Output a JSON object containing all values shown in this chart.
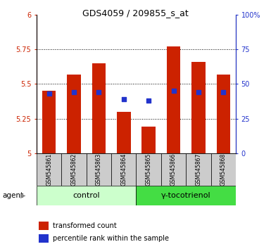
{
  "title": "GDS4059 / 209855_s_at",
  "samples": [
    "GSM545861",
    "GSM545862",
    "GSM545863",
    "GSM545864",
    "GSM545865",
    "GSM545866",
    "GSM545867",
    "GSM545868"
  ],
  "transformed_counts": [
    5.45,
    5.57,
    5.65,
    5.3,
    5.19,
    5.77,
    5.66,
    5.57
  ],
  "percentile_ranks": [
    43,
    44,
    44,
    39,
    38,
    45,
    44,
    44
  ],
  "ylim_left": [
    5.0,
    6.0
  ],
  "ylim_right": [
    0,
    100
  ],
  "yticks_left": [
    5.0,
    5.25,
    5.5,
    5.75,
    6.0
  ],
  "ytick_labels_left": [
    "5",
    "5.25",
    "5.5",
    "5.75",
    "6"
  ],
  "yticks_right": [
    0,
    25,
    50,
    75,
    100
  ],
  "ytick_labels_right": [
    "0",
    "25",
    "50",
    "75",
    "100%"
  ],
  "bar_color": "#cc2200",
  "dot_color": "#2233cc",
  "bar_bottom": 5.0,
  "control_label": "control",
  "treatment_label": "γ-tocotrienol",
  "agent_label": "agent",
  "legend_bar_label": "transformed count",
  "legend_dot_label": "percentile rank within the sample",
  "control_bg": "#ccffcc",
  "treatment_bg": "#44dd44",
  "sample_bg": "#cccccc",
  "bar_width": 0.55,
  "grid_linestyle": ":"
}
